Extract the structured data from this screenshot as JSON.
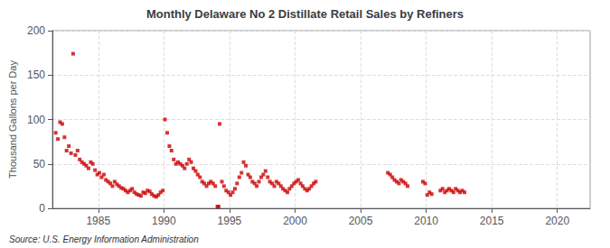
{
  "chart_data": {
    "type": "scatter",
    "title": "Monthly Delaware No 2 Distillate Retail Sales by Refiners",
    "ylabel": "Thousand Gallons per Day",
    "source": "Source: U.S. Energy Information Administration",
    "color": "#cc0000",
    "marker": "square",
    "grid": true,
    "xlim": [
      1981.5,
      2022.5
    ],
    "xticks": [
      1985,
      1990,
      1995,
      2000,
      2005,
      2010,
      2015,
      2020
    ],
    "ylim": [
      0,
      200
    ],
    "yticks": [
      0,
      50,
      100,
      150,
      200
    ],
    "x": [
      1981.75,
      1981.92,
      1982.08,
      1982.25,
      1982.42,
      1982.58,
      1982.75,
      1982.92,
      1983.08,
      1983.25,
      1983.42,
      1983.58,
      1983.75,
      1983.92,
      1984.08,
      1984.25,
      1984.42,
      1984.58,
      1984.75,
      1984.92,
      1985.08,
      1985.25,
      1985.42,
      1985.58,
      1985.75,
      1985.92,
      1986.08,
      1986.25,
      1986.42,
      1986.58,
      1986.75,
      1986.92,
      1987.08,
      1987.25,
      1987.42,
      1987.58,
      1987.75,
      1987.92,
      1988.08,
      1988.25,
      1988.42,
      1988.58,
      1988.75,
      1988.92,
      1989.08,
      1989.25,
      1989.42,
      1989.58,
      1989.75,
      1989.92,
      1990.08,
      1990.25,
      1990.42,
      1990.58,
      1990.75,
      1990.92,
      1991.08,
      1991.25,
      1991.42,
      1991.58,
      1991.75,
      1991.92,
      1992.08,
      1992.25,
      1992.42,
      1992.58,
      1992.75,
      1992.92,
      1993.08,
      1993.25,
      1993.42,
      1993.58,
      1993.75,
      1993.92,
      1994.08,
      1994.17,
      1994.25,
      1994.42,
      1994.58,
      1994.75,
      1994.92,
      1995.08,
      1995.25,
      1995.42,
      1995.58,
      1995.75,
      1995.92,
      1996.08,
      1996.25,
      1996.42,
      1996.58,
      1996.75,
      1996.92,
      1997.08,
      1997.25,
      1997.42,
      1997.58,
      1997.75,
      1997.92,
      1998.08,
      1998.25,
      1998.42,
      1998.58,
      1998.75,
      1998.92,
      1999.08,
      1999.25,
      1999.42,
      1999.58,
      1999.75,
      1999.92,
      2000.08,
      2000.25,
      2000.42,
      2000.58,
      2000.75,
      2000.92,
      2001.08,
      2001.25,
      2001.42,
      2001.58,
      2007.08,
      2007.25,
      2007.42,
      2007.58,
      2007.75,
      2007.92,
      2008.08,
      2008.25,
      2008.42,
      2008.58,
      2009.75,
      2009.92,
      2010.08,
      2010.25,
      2010.42,
      2011.08,
      2011.25,
      2011.42,
      2011.58,
      2011.75,
      2011.92,
      2012.08,
      2012.25,
      2012.42,
      2012.58,
      2012.75,
      2012.92
    ],
    "values": [
      85,
      78,
      97,
      95,
      80,
      65,
      70,
      62,
      174,
      60,
      65,
      55,
      52,
      50,
      48,
      45,
      52,
      50,
      43,
      38,
      40,
      35,
      38,
      32,
      30,
      28,
      25,
      30,
      27,
      25,
      23,
      22,
      20,
      18,
      20,
      22,
      18,
      16,
      15,
      14,
      18,
      17,
      20,
      19,
      16,
      14,
      13,
      15,
      18,
      20,
      100,
      85,
      70,
      65,
      55,
      50,
      52,
      50,
      48,
      45,
      50,
      55,
      52,
      45,
      42,
      38,
      35,
      30,
      28,
      25,
      28,
      30,
      28,
      25,
      2,
      2,
      95,
      30,
      25,
      20,
      18,
      15,
      18,
      22,
      28,
      35,
      40,
      52,
      48,
      38,
      35,
      30,
      28,
      25,
      30,
      35,
      38,
      42,
      35,
      30,
      28,
      25,
      30,
      28,
      25,
      22,
      20,
      18,
      22,
      25,
      28,
      30,
      32,
      28,
      25,
      22,
      20,
      22,
      25,
      28,
      30,
      40,
      38,
      35,
      32,
      30,
      28,
      32,
      30,
      28,
      25,
      30,
      28,
      15,
      18,
      16,
      20,
      22,
      18,
      20,
      22,
      20,
      18,
      22,
      20,
      18,
      20,
      18
    ]
  }
}
